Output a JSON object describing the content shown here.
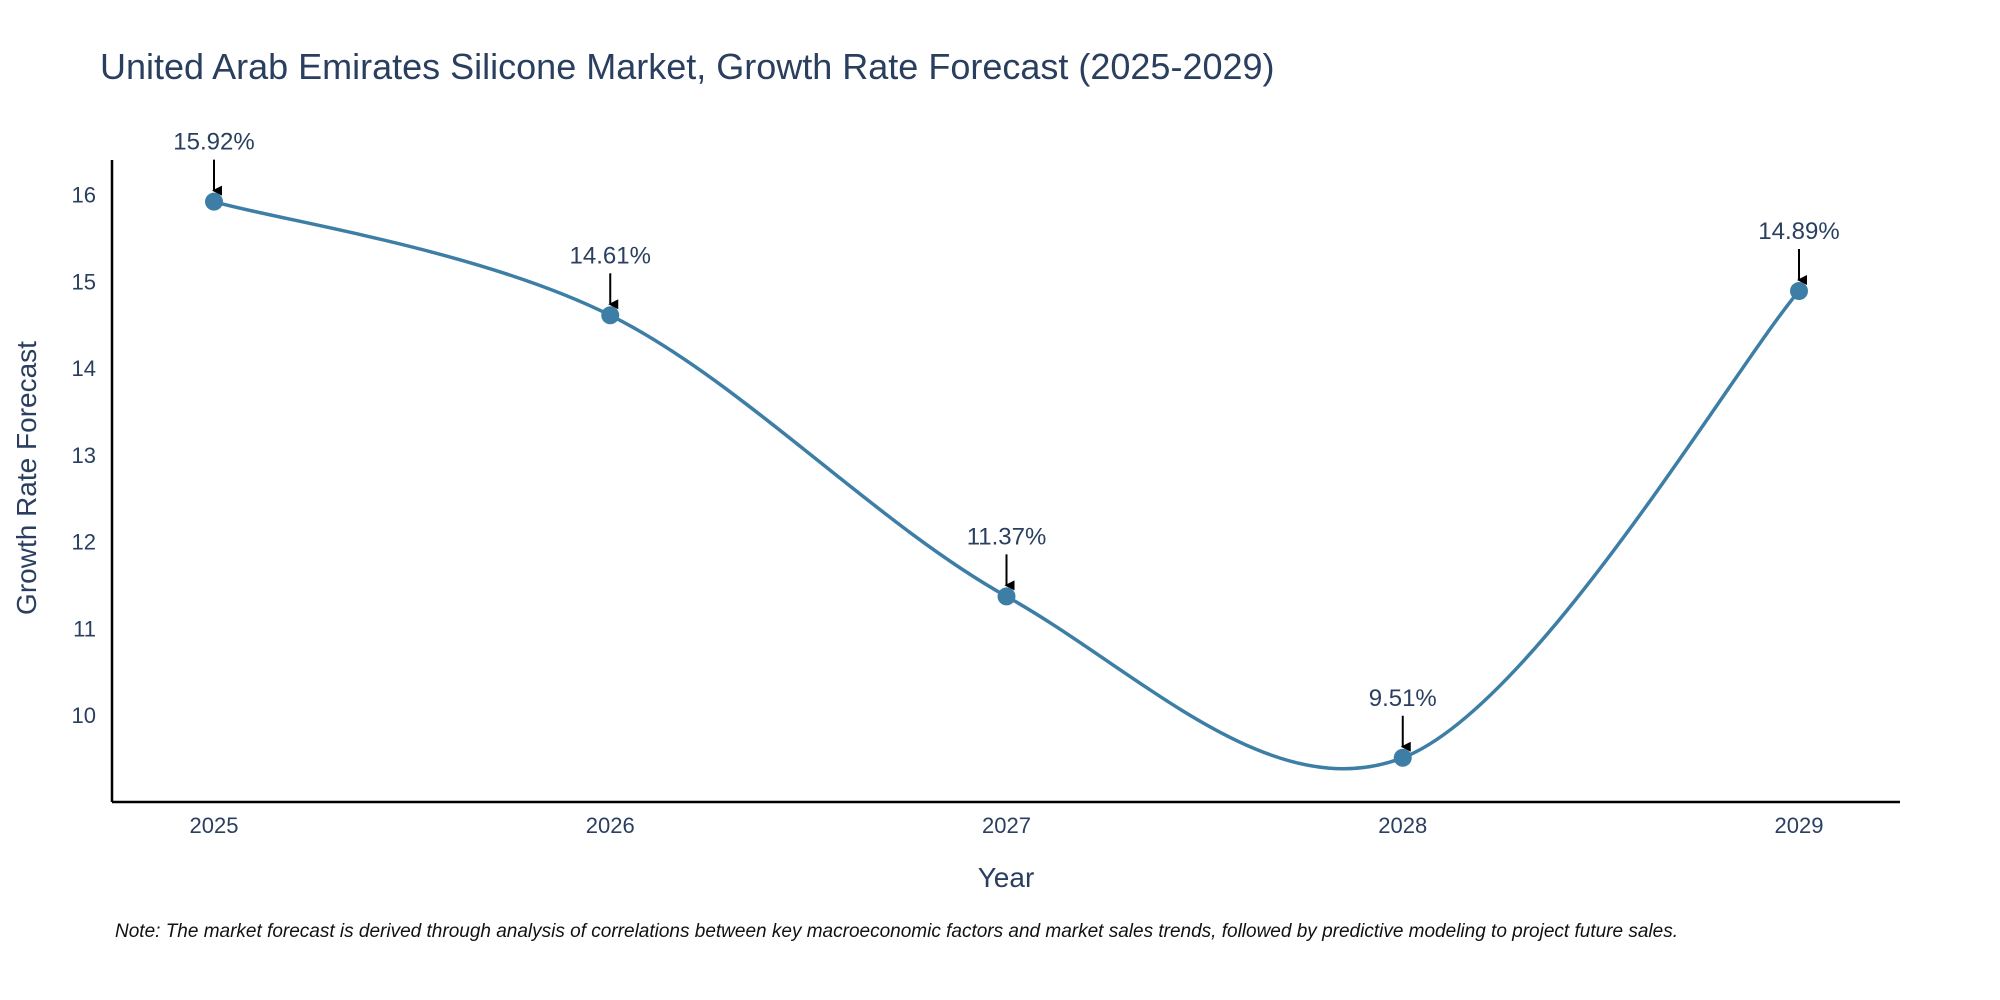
{
  "colors": {
    "line": "#3d7ea6",
    "marker": "#3d7ea6",
    "text": "#2a3f5f",
    "axis": "#000000",
    "arrow": "#000000"
  },
  "chart_data": {
    "type": "line",
    "title": "United Arab Emirates Silicone Market, Growth Rate Forecast (2025-2029)",
    "xlabel": "Year",
    "ylabel": "Growth Rate Forecast",
    "categories": [
      "2025",
      "2026",
      "2027",
      "2028",
      "2029"
    ],
    "series": [
      {
        "name": "Growth Rate Forecast",
        "values": [
          15.92,
          14.61,
          11.37,
          9.51,
          14.89
        ],
        "labels": [
          "15.92%",
          "14.61%",
          "11.37%",
          "9.51%",
          "14.89%"
        ]
      }
    ],
    "yticks": [
      10,
      11,
      12,
      13,
      14,
      15,
      16
    ],
    "ylim": [
      9.0,
      16.4
    ],
    "grid": false,
    "note": "Note: The market forecast is derived through analysis of correlations between key macroeconomic factors and market sales trends, followed by predictive modeling to project future sales."
  }
}
